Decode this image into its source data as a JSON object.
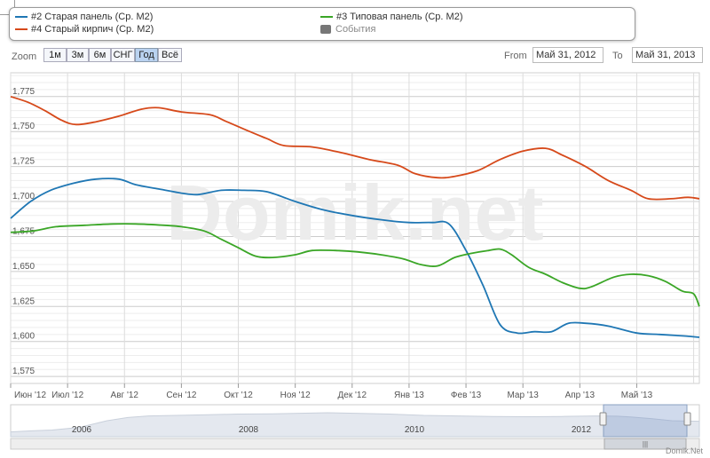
{
  "legend": {
    "items": [
      {
        "label": "#2 Старая панель (Ср. M2)",
        "color": "#1f77b4"
      },
      {
        "label": "#4 Старый кирпич (Ср. M2)",
        "color": "#d6491a"
      },
      {
        "label": "#3 Типовая панель (Ср. M2)",
        "color": "#3aa626"
      },
      {
        "label": "События",
        "color": "#777777"
      }
    ]
  },
  "toolbar": {
    "zoom_label": "Zoom",
    "buttons": [
      "1м",
      "3м",
      "6м",
      "СНГ",
      "Год",
      "Всё"
    ],
    "selected": "Год",
    "from_label": "From",
    "from_value": "Май 31, 2012",
    "to_label": "To",
    "to_value": "Май 31, 2013"
  },
  "watermark": "Domik.net",
  "credit": "Domik.Net",
  "chart_data": {
    "type": "line",
    "x_tick_labels": [
      "Июн '12",
      "Июл '12",
      "Авг '12",
      "Сен '12",
      "Окт '12",
      "Ноя '12",
      "Дек '12",
      "Янв '13",
      "Фев '13",
      "Мар '13",
      "Апр '13",
      "Май '13"
    ],
    "y_tick_labels": [
      "1,575",
      "1,600",
      "1,625",
      "1,650",
      "1,675",
      "1,700",
      "1,725",
      "1,750",
      "1,775"
    ],
    "ylim": [
      1570,
      1792
    ],
    "xlim": [
      0,
      12.1
    ],
    "grid": true,
    "series": [
      {
        "name": "#2 Старая панель (Ср. M2)",
        "color": "#1f77b4",
        "points": [
          [
            0,
            1688
          ],
          [
            0.35,
            1700
          ],
          [
            0.7,
            1708
          ],
          [
            1.1,
            1713
          ],
          [
            1.5,
            1716
          ],
          [
            1.9,
            1716
          ],
          [
            2.2,
            1712
          ],
          [
            2.6,
            1709
          ],
          [
            3.0,
            1706
          ],
          [
            3.3,
            1705
          ],
          [
            3.7,
            1708
          ],
          [
            4.1,
            1708
          ],
          [
            4.5,
            1707
          ],
          [
            5.0,
            1700
          ],
          [
            5.5,
            1694
          ],
          [
            6.0,
            1690
          ],
          [
            6.5,
            1687
          ],
          [
            7.0,
            1685
          ],
          [
            7.4,
            1685
          ],
          [
            7.7,
            1684
          ],
          [
            8.0,
            1665
          ],
          [
            8.3,
            1640
          ],
          [
            8.6,
            1612
          ],
          [
            8.9,
            1606
          ],
          [
            9.2,
            1607
          ],
          [
            9.5,
            1607
          ],
          [
            9.8,
            1613
          ],
          [
            10.1,
            1613
          ],
          [
            10.5,
            1611
          ],
          [
            11.0,
            1606
          ],
          [
            11.4,
            1605
          ],
          [
            11.8,
            1604
          ],
          [
            12.1,
            1603
          ]
        ]
      },
      {
        "name": "#4 Старый кирпич (Ср. M2)",
        "color": "#d6491a",
        "points": [
          [
            0,
            1775
          ],
          [
            0.3,
            1771
          ],
          [
            0.6,
            1765
          ],
          [
            0.9,
            1758
          ],
          [
            1.15,
            1755
          ],
          [
            1.5,
            1757
          ],
          [
            1.9,
            1761
          ],
          [
            2.3,
            1766
          ],
          [
            2.6,
            1767
          ],
          [
            3.0,
            1764
          ],
          [
            3.5,
            1762
          ],
          [
            3.8,
            1757
          ],
          [
            4.2,
            1750
          ],
          [
            4.5,
            1745
          ],
          [
            4.8,
            1740
          ],
          [
            5.3,
            1739
          ],
          [
            5.8,
            1735
          ],
          [
            6.3,
            1730
          ],
          [
            6.8,
            1726
          ],
          [
            7.1,
            1720
          ],
          [
            7.5,
            1717
          ],
          [
            7.8,
            1718
          ],
          [
            8.2,
            1722
          ],
          [
            8.6,
            1730
          ],
          [
            9.0,
            1736
          ],
          [
            9.4,
            1738
          ],
          [
            9.7,
            1733
          ],
          [
            10.1,
            1725
          ],
          [
            10.5,
            1715
          ],
          [
            10.9,
            1708
          ],
          [
            11.2,
            1702
          ],
          [
            11.6,
            1702
          ],
          [
            11.9,
            1703
          ],
          [
            12.1,
            1702
          ]
        ]
      },
      {
        "name": "#3 Типовая панель (Ср. M2)",
        "color": "#3aa626",
        "points": [
          [
            0,
            1678
          ],
          [
            0.4,
            1679
          ],
          [
            0.8,
            1682
          ],
          [
            1.3,
            1683
          ],
          [
            1.8,
            1684
          ],
          [
            2.2,
            1684
          ],
          [
            2.7,
            1683
          ],
          [
            3.0,
            1682
          ],
          [
            3.4,
            1679
          ],
          [
            3.7,
            1673
          ],
          [
            4.0,
            1667
          ],
          [
            4.3,
            1661
          ],
          [
            4.6,
            1660
          ],
          [
            5.0,
            1662
          ],
          [
            5.3,
            1665
          ],
          [
            5.7,
            1665
          ],
          [
            6.1,
            1664
          ],
          [
            6.5,
            1662
          ],
          [
            6.9,
            1659
          ],
          [
            7.2,
            1655
          ],
          [
            7.5,
            1654
          ],
          [
            7.8,
            1660
          ],
          [
            8.1,
            1663
          ],
          [
            8.4,
            1665
          ],
          [
            8.6,
            1666
          ],
          [
            8.8,
            1662
          ],
          [
            9.1,
            1653
          ],
          [
            9.4,
            1648
          ],
          [
            9.7,
            1642
          ],
          [
            10.0,
            1638
          ],
          [
            10.2,
            1639
          ],
          [
            10.6,
            1646
          ],
          [
            10.9,
            1648
          ],
          [
            11.2,
            1647
          ],
          [
            11.5,
            1643
          ],
          [
            11.8,
            1636
          ],
          [
            12.0,
            1634
          ],
          [
            12.1,
            1625
          ]
        ]
      }
    ],
    "navigator": {
      "labels": [
        "2006",
        "2008",
        "2010",
        "2012"
      ]
    }
  }
}
